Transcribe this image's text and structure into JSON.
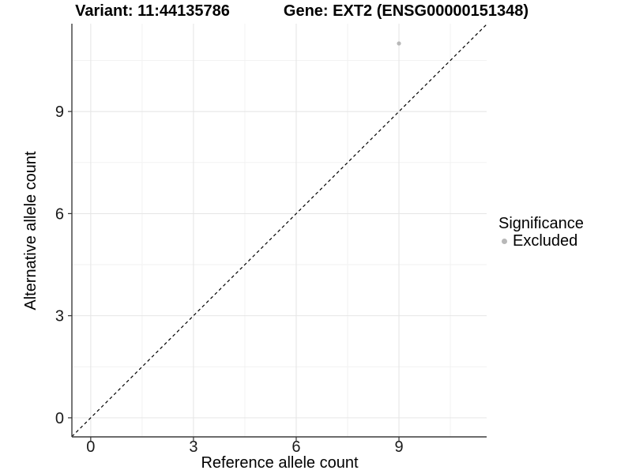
{
  "chart_data": {
    "type": "scatter",
    "title_left": "Variant: 11:44135786",
    "title_right": "Gene: EXT2 (ENSG00000151348)",
    "xlabel": "Reference allele count",
    "ylabel": "Alternative allele count",
    "xlim": [
      -0.55,
      11.56
    ],
    "ylim": [
      -0.56,
      11.58
    ],
    "x_ticks": [
      0,
      3,
      6,
      9
    ],
    "y_ticks": [
      0,
      3,
      6,
      9
    ],
    "x_minor_ticks": [
      1.5,
      4.5,
      7.5,
      10.5
    ],
    "y_minor_ticks": [
      1.5,
      4.5,
      7.5,
      10.5
    ],
    "grid": true,
    "points": [
      {
        "x": 9,
        "y": 11,
        "significance": "Excluded"
      }
    ],
    "diagonal_line": {
      "type": "identity",
      "slope": 1,
      "intercept": 0,
      "style": "dashed"
    },
    "legend": {
      "title": "Significance",
      "position": "right",
      "items": [
        {
          "label": "Excluded",
          "color": "#b8b8b8"
        }
      ]
    }
  },
  "colors": {
    "background": "#ffffff",
    "grid_major": "#e6e6e6",
    "grid_minor": "#f1f1f1",
    "axis_line": "#3c3c3c",
    "tick_mark": "#333333",
    "tick_label": "#1a1a1a",
    "point": "#b8b8b8",
    "diagonal": "#000000",
    "text": "#000000"
  }
}
